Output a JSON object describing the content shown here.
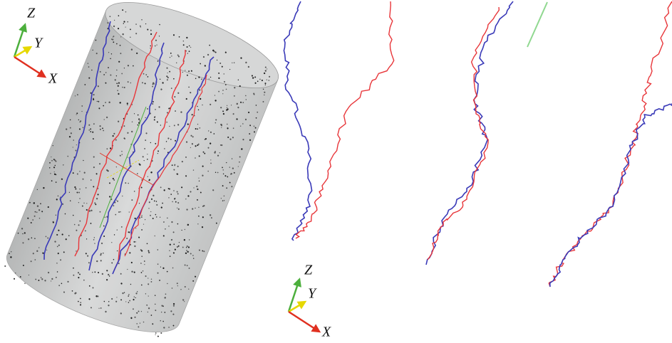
{
  "left_axes": {
    "z": "Z",
    "y": "Y",
    "x": "X"
  },
  "right_axes": {
    "z": "Z",
    "y": "Y",
    "x": "X"
  }
}
